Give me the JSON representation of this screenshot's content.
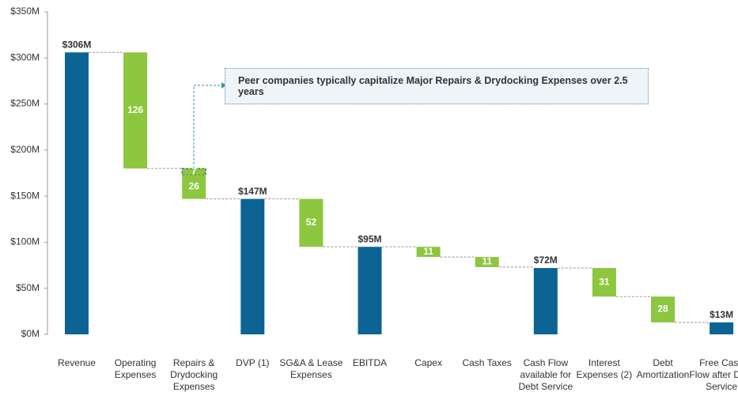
{
  "chart_data": {
    "type": "waterfall",
    "categories": [
      "Revenue",
      "Operating Expenses",
      "Repairs & Drydocking Expenses",
      "DVP (1)",
      "SG&A & Lease Expenses",
      "EBITDA",
      "Capex",
      "Cash Taxes",
      "Cash Flow available for Debt Service",
      "Interest Expenses (2)",
      "Debt Amortization",
      "Free Cash Flow after Debt Service"
    ],
    "series": [
      {
        "color": "#0b6494",
        "role": "total",
        "values": [
          306,
          null,
          null,
          147,
          null,
          95,
          null,
          null,
          72,
          null,
          null,
          13
        ],
        "value_labels": [
          "$306M",
          null,
          null,
          "$147M",
          null,
          "$95M",
          null,
          null,
          "$72M",
          null,
          null,
          "$13M"
        ]
      },
      {
        "color": "#8dc63f",
        "role": "decrease",
        "outline_color": "#2f5f66",
        "values": [
          null,
          null,
          7,
          null,
          null,
          null,
          null,
          null,
          null,
          null,
          null,
          null
        ]
      },
      {
        "color": "#8dc63f",
        "role": "decrease",
        "values": [
          null,
          126,
          26,
          null,
          52,
          null,
          11,
          11,
          null,
          31,
          28,
          null
        ]
      }
    ],
    "annotation": "Peer companies typically capitalize Major Repairs & Drydocking Expenses over 2.5 years",
    "ylim": [
      0,
      350
    ],
    "yticks": [
      {
        "value": 0,
        "label": "$0M"
      },
      {
        "value": 50,
        "label": "$50M"
      },
      {
        "value": 100,
        "label": "$100M"
      },
      {
        "value": 150,
        "label": "$150M"
      },
      {
        "value": 200,
        "label": "$200M"
      },
      {
        "value": 250,
        "label": "$250M"
      },
      {
        "value": 300,
        "label": "$300M"
      },
      {
        "value": 350,
        "label": "$350M"
      }
    ]
  }
}
